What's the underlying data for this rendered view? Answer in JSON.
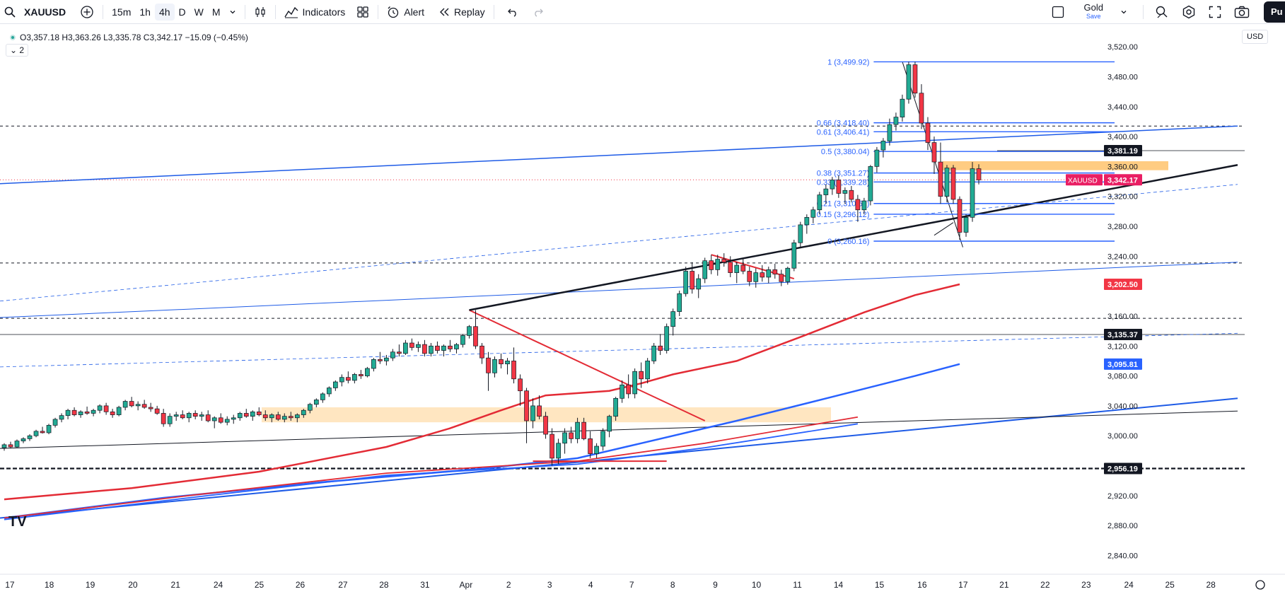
{
  "toolbar": {
    "symbol": "XAUUSD",
    "timeframes": [
      "15m",
      "1h",
      "4h",
      "D",
      "W",
      "M"
    ],
    "active_timeframe": "4h",
    "indicators_label": "Indicators",
    "alert_label": "Alert",
    "replay_label": "Replay",
    "layout_name": "Gold",
    "layout_status": "Save",
    "publish_label": "Pu"
  },
  "legend": {
    "ohlc": "O3,357.18 H3,363.26 L3,335.78 C3,342.17 −15.09 (−0.45%)",
    "collapsed_count": "2"
  },
  "currency": "USD",
  "logo_text": "TV",
  "colors": {
    "up_candle": "#22ab94",
    "down_candle": "#f23645",
    "ma_red": "#e32b35",
    "ma_blue": "#2962ff",
    "channel_blue": "#1e5be6",
    "zone_orange": "#ffb74d",
    "fib_blue": "#2962ff",
    "price_label": "#e91e63"
  },
  "chart_data": {
    "type": "candlestick",
    "symbol": "XAUUSD",
    "interval": "4h",
    "last_price": 3342.17,
    "ylim": [
      2830,
      3540
    ],
    "y_ticks": [
      2840,
      2880,
      2920,
      3000,
      3040,
      3080,
      3120,
      3160,
      3200,
      3240,
      3280,
      3320,
      3360,
      3400,
      3440,
      3480,
      3520
    ],
    "y_tick_labels": [
      "2,840.00",
      "2,880.00",
      "2,920.00",
      "3,000.00",
      "3,040.00",
      "3,080.00",
      "3,120.00",
      "3,160.00",
      "3,200.00",
      "3,240.00",
      "3,280.00",
      "3,320.00",
      "3,360.00",
      "3,400.00",
      "3,440.00",
      "3,480.00",
      "3,520.00"
    ],
    "x_labels": [
      "17",
      "18",
      "19",
      "20",
      "21",
      "24",
      "25",
      "26",
      "27",
      "28",
      "31",
      "Apr",
      "2",
      "3",
      "4",
      "7",
      "8",
      "9",
      "10",
      "11",
      "14",
      "15",
      "16",
      "17",
      "21",
      "22",
      "23",
      "24",
      "25",
      "28"
    ],
    "price_labels": [
      {
        "value": 3381.19,
        "text": "3,381.19",
        "style": "dark"
      },
      {
        "value": 3342.17,
        "text": "3,342.17",
        "style": "symbol",
        "symbol": "XAUUSD"
      },
      {
        "value": 3202.5,
        "text": "3,202.50",
        "style": "red"
      },
      {
        "value": 3135.37,
        "text": "3,135.37",
        "style": "dark"
      },
      {
        "value": 3095.81,
        "text": "3,095.81",
        "style": "blue"
      },
      {
        "value": 2956.19,
        "text": "2,956.19",
        "style": "dark"
      }
    ],
    "horizontal_levels": [
      3414,
      3231,
      3157,
      2956.19
    ],
    "fibonacci": {
      "high": 3499.92,
      "low": 3260.16,
      "levels": [
        {
          "ratio": "1",
          "price": 3499.92,
          "text": "1 (3,499.92)"
        },
        {
          "ratio": "0.66",
          "price": 3418.4,
          "text": "0.66 (3,418.40)"
        },
        {
          "ratio": "0.61",
          "price": 3406.41,
          "text": "0.61 (3,406.41)"
        },
        {
          "ratio": "0.5",
          "price": 3380.04,
          "text": "0.5 (3,380.04)"
        },
        {
          "ratio": "0.38",
          "price": 3351.27,
          "text": "0.38 (3,351.27)"
        },
        {
          "ratio": "0.33",
          "price": 3339.28,
          "text": "0.33 (3,339.28)"
        },
        {
          "ratio": "0.21",
          "price": 3310.51,
          "text": "0.21 (3,310.51)"
        },
        {
          "ratio": "0.15",
          "price": 3296.12,
          "text": "0.15 (3,296.12)"
        },
        {
          "ratio": "0",
          "price": 3260.16,
          "text": "0 (3,260.16)"
        }
      ]
    },
    "zones": [
      {
        "from_price": 3018,
        "to_price": 3038
      },
      {
        "from_price": 3355,
        "to_price": 3367
      }
    ],
    "candles_ohlc": [
      [
        2984,
        2990,
        2980,
        2988
      ],
      [
        2988,
        2992,
        2983,
        2985
      ],
      [
        2985,
        2995,
        2984,
        2993
      ],
      [
        2993,
        2998,
        2990,
        2996
      ],
      [
        2996,
        3002,
        2993,
        3000
      ],
      [
        3000,
        3008,
        2998,
        3006
      ],
      [
        3006,
        3012,
        3003,
        3004
      ],
      [
        3004,
        3016,
        3002,
        3014
      ],
      [
        3014,
        3024,
        3011,
        3022
      ],
      [
        3022,
        3030,
        3018,
        3027
      ],
      [
        3027,
        3036,
        3022,
        3034
      ],
      [
        3034,
        3038,
        3026,
        3028
      ],
      [
        3028,
        3034,
        3024,
        3032
      ],
      [
        3032,
        3039,
        3028,
        3030
      ],
      [
        3030,
        3036,
        3026,
        3034
      ],
      [
        3034,
        3042,
        3030,
        3040
      ],
      [
        3040,
        3044,
        3028,
        3032
      ],
      [
        3032,
        3036,
        3024,
        3028
      ],
      [
        3028,
        3040,
        3026,
        3038
      ],
      [
        3038,
        3048,
        3034,
        3046
      ],
      [
        3046,
        3052,
        3038,
        3040
      ],
      [
        3040,
        3046,
        3034,
        3042
      ],
      [
        3042,
        3048,
        3036,
        3038
      ],
      [
        3038,
        3044,
        3032,
        3036
      ],
      [
        3036,
        3040,
        3028,
        3030
      ],
      [
        3030,
        3036,
        3012,
        3016
      ],
      [
        3016,
        3030,
        3012,
        3026
      ],
      [
        3026,
        3032,
        3020,
        3028
      ],
      [
        3028,
        3034,
        3022,
        3024
      ],
      [
        3024,
        3032,
        3018,
        3030
      ],
      [
        3030,
        3034,
        3022,
        3026
      ],
      [
        3026,
        3032,
        3020,
        3028
      ],
      [
        3028,
        3034,
        3018,
        3020
      ],
      [
        3020,
        3026,
        3010,
        3024
      ],
      [
        3024,
        3030,
        3016,
        3018
      ],
      [
        3018,
        3026,
        3014,
        3022
      ],
      [
        3022,
        3028,
        3016,
        3024
      ],
      [
        3024,
        3032,
        3020,
        3030
      ],
      [
        3030,
        3036,
        3024,
        3026
      ],
      [
        3026,
        3034,
        3020,
        3032
      ],
      [
        3032,
        3038,
        3026,
        3028
      ],
      [
        3028,
        3034,
        3020,
        3024
      ],
      [
        3024,
        3030,
        3018,
        3028
      ],
      [
        3028,
        3032,
        3020,
        3022
      ],
      [
        3022,
        3030,
        3018,
        3026
      ],
      [
        3026,
        3032,
        3020,
        3024
      ],
      [
        3024,
        3030,
        3018,
        3028
      ],
      [
        3028,
        3036,
        3024,
        3034
      ],
      [
        3034,
        3044,
        3030,
        3042
      ],
      [
        3042,
        3050,
        3038,
        3048
      ],
      [
        3048,
        3058,
        3044,
        3056
      ],
      [
        3056,
        3066,
        3052,
        3064
      ],
      [
        3064,
        3074,
        3060,
        3072
      ],
      [
        3072,
        3082,
        3066,
        3078
      ],
      [
        3078,
        3086,
        3070,
        3074
      ],
      [
        3074,
        3084,
        3070,
        3082
      ],
      [
        3082,
        3088,
        3076,
        3080
      ],
      [
        3080,
        3092,
        3078,
        3090
      ],
      [
        3090,
        3104,
        3086,
        3102
      ],
      [
        3102,
        3112,
        3096,
        3100
      ],
      [
        3100,
        3108,
        3094,
        3104
      ],
      [
        3104,
        3116,
        3100,
        3112
      ],
      [
        3112,
        3122,
        3106,
        3110
      ],
      [
        3110,
        3128,
        3108,
        3124
      ],
      [
        3124,
        3130,
        3114,
        3118
      ],
      [
        3118,
        3126,
        3112,
        3122
      ],
      [
        3122,
        3128,
        3106,
        3110
      ],
      [
        3110,
        3124,
        3106,
        3120
      ],
      [
        3120,
        3126,
        3110,
        3114
      ],
      [
        3114,
        3122,
        3106,
        3120
      ],
      [
        3120,
        3128,
        3112,
        3116
      ],
      [
        3116,
        3124,
        3110,
        3122
      ],
      [
        3122,
        3136,
        3118,
        3134
      ],
      [
        3134,
        3148,
        3130,
        3146
      ],
      [
        3146,
        3168,
        3116,
        3120
      ],
      [
        3120,
        3124,
        3096,
        3104
      ],
      [
        3104,
        3112,
        3060,
        3084
      ],
      [
        3084,
        3106,
        3078,
        3102
      ],
      [
        3102,
        3110,
        3090,
        3096
      ],
      [
        3096,
        3104,
        3082,
        3100
      ],
      [
        3100,
        3118,
        3070,
        3076
      ],
      [
        3076,
        3082,
        3040,
        3060
      ],
      [
        3060,
        3064,
        2990,
        3020
      ],
      [
        3020,
        3050,
        3010,
        3040
      ],
      [
        3040,
        3054,
        3022,
        3026
      ],
      [
        3026,
        3032,
        2996,
        3002
      ],
      [
        3002,
        3010,
        2960,
        2970
      ],
      [
        2970,
        2996,
        2962,
        2990
      ],
      [
        2990,
        3010,
        2976,
        3004
      ],
      [
        3004,
        3012,
        2990,
        2996
      ],
      [
        2996,
        3024,
        2990,
        3018
      ],
      [
        3018,
        3024,
        2994,
        2996
      ],
      [
        2996,
        3006,
        2970,
        2976
      ],
      [
        2976,
        2990,
        2970,
        2986
      ],
      [
        2986,
        3010,
        2980,
        3006
      ],
      [
        3006,
        3028,
        2998,
        3026
      ],
      [
        3026,
        3052,
        3020,
        3050
      ],
      [
        3050,
        3074,
        3044,
        3068
      ],
      [
        3068,
        3082,
        3050,
        3056
      ],
      [
        3056,
        3090,
        3050,
        3086
      ],
      [
        3086,
        3098,
        3064,
        3076
      ],
      [
        3076,
        3104,
        3070,
        3100
      ],
      [
        3100,
        3124,
        3096,
        3120
      ],
      [
        3120,
        3136,
        3108,
        3114
      ],
      [
        3114,
        3150,
        3110,
        3146
      ],
      [
        3146,
        3170,
        3134,
        3166
      ],
      [
        3166,
        3194,
        3160,
        3190
      ],
      [
        3190,
        3226,
        3186,
        3220
      ],
      [
        3220,
        3232,
        3190,
        3196
      ],
      [
        3196,
        3216,
        3184,
        3210
      ],
      [
        3210,
        3238,
        3204,
        3234
      ],
      [
        3234,
        3242,
        3216,
        3222
      ],
      [
        3222,
        3242,
        3214,
        3236
      ],
      [
        3236,
        3244,
        3226,
        3232
      ],
      [
        3232,
        3240,
        3212,
        3218
      ],
      [
        3218,
        3232,
        3204,
        3228
      ],
      [
        3228,
        3236,
        3216,
        3220
      ],
      [
        3220,
        3226,
        3200,
        3206
      ],
      [
        3206,
        3224,
        3198,
        3218
      ],
      [
        3218,
        3228,
        3206,
        3212
      ],
      [
        3212,
        3226,
        3204,
        3222
      ],
      [
        3222,
        3230,
        3210,
        3216
      ],
      [
        3216,
        3222,
        3200,
        3206
      ],
      [
        3206,
        3226,
        3202,
        3224
      ],
      [
        3224,
        3262,
        3220,
        3258
      ],
      [
        3258,
        3286,
        3252,
        3282
      ],
      [
        3282,
        3296,
        3270,
        3292
      ],
      [
        3292,
        3306,
        3284,
        3302
      ],
      [
        3302,
        3326,
        3296,
        3322
      ],
      [
        3322,
        3336,
        3310,
        3330
      ],
      [
        3330,
        3346,
        3322,
        3342
      ],
      [
        3342,
        3348,
        3318,
        3324
      ],
      [
        3324,
        3332,
        3310,
        3328
      ],
      [
        3328,
        3334,
        3312,
        3316
      ],
      [
        3316,
        3322,
        3286,
        3302
      ],
      [
        3302,
        3318,
        3296,
        3314
      ],
      [
        3314,
        3362,
        3308,
        3360
      ],
      [
        3360,
        3386,
        3352,
        3382
      ],
      [
        3382,
        3398,
        3372,
        3394
      ],
      [
        3394,
        3424,
        3388,
        3416
      ],
      [
        3416,
        3432,
        3408,
        3426
      ],
      [
        3426,
        3456,
        3420,
        3450
      ],
      [
        3450,
        3500,
        3444,
        3496
      ],
      [
        3496,
        3500,
        3452,
        3458
      ],
      [
        3458,
        3470,
        3410,
        3418
      ],
      [
        3418,
        3426,
        3382,
        3392
      ],
      [
        3392,
        3400,
        3350,
        3366
      ],
      [
        3366,
        3392,
        3310,
        3320
      ],
      [
        3320,
        3362,
        3312,
        3358
      ],
      [
        3358,
        3362,
        3310,
        3316
      ],
      [
        3316,
        3320,
        3262,
        3272
      ],
      [
        3272,
        3296,
        3266,
        3292
      ],
      [
        3292,
        3366,
        3286,
        3357
      ],
      [
        3357,
        3363,
        3336,
        3342
      ]
    ]
  }
}
